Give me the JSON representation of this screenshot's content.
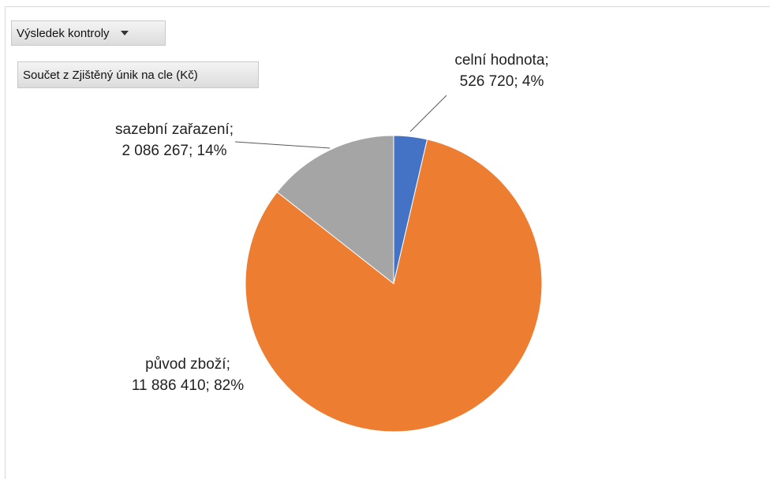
{
  "pivot": {
    "filter_label": "Výsledek kontroly",
    "value_field_label": "Součet z Zjištěný únik na cle (Kč)"
  },
  "chart_data": {
    "type": "pie",
    "title": "",
    "slices": [
      {
        "name": "celní hodnota",
        "value": 526720,
        "percent": 4,
        "color": "#4472c4",
        "label_lines": [
          "celní hodnota;",
          "526 720; 4%"
        ]
      },
      {
        "name": "původ zboží",
        "value": 11886410,
        "percent": 82,
        "color": "#ed7d31",
        "label_lines": [
          "původ zboží;",
          "11 886 410; 82%"
        ]
      },
      {
        "name": "sazební zařazení",
        "value": 2086267,
        "percent": 14,
        "color": "#a5a5a5",
        "label_lines": [
          "sazební zařazení;",
          "2 086 267; 14%"
        ]
      }
    ],
    "legend": "none"
  }
}
